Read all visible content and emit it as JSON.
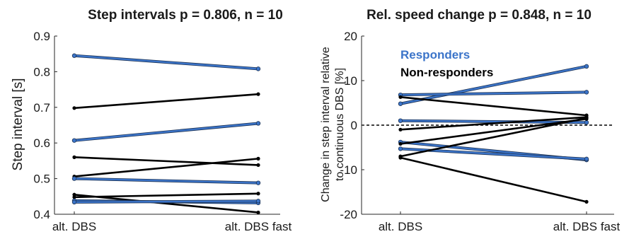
{
  "colors": {
    "responder": "#3b74c9",
    "non_responder": "#000000",
    "axis": "#262626"
  },
  "chart_data": [
    {
      "type": "line",
      "title": "Step intervals p = 0.806, n = 10",
      "ylabel": "Step interval [s]",
      "xlabel": "",
      "categories": [
        "alt. DBS",
        "alt. DBS fast"
      ],
      "ylim": [
        0.4,
        0.9
      ],
      "yticks": [
        "0.4",
        "0.5",
        "0.6",
        "0.7",
        "0.8",
        "0.9"
      ],
      "grid": false,
      "series": [
        {
          "group": "responder",
          "values": [
            0.845,
            0.808
          ]
        },
        {
          "group": "non-responder",
          "values": [
            0.698,
            0.737
          ]
        },
        {
          "group": "responder",
          "values": [
            0.607,
            0.655
          ]
        },
        {
          "group": "non-responder",
          "values": [
            0.56,
            0.538
          ]
        },
        {
          "group": "non-responder",
          "values": [
            0.506,
            0.556
          ]
        },
        {
          "group": "responder",
          "values": [
            0.5,
            0.488
          ]
        },
        {
          "group": "non-responder",
          "values": [
            0.455,
            0.405
          ]
        },
        {
          "group": "non-responder",
          "values": [
            0.448,
            0.458
          ]
        },
        {
          "group": "responder",
          "values": [
            0.438,
            0.432
          ]
        },
        {
          "group": "responder",
          "values": [
            0.434,
            0.437
          ]
        }
      ]
    },
    {
      "type": "line",
      "title": "Rel. speed change p = 0.848, n = 10",
      "ylabel": "Change in step interval relative to continuous DBS [%]",
      "ylabel_lines": [
        "Change in step interval relative",
        "to continuous DBS [%]"
      ],
      "xlabel": "",
      "categories": [
        "alt. DBS",
        "alt. DBS fast"
      ],
      "ylim": [
        -20,
        20
      ],
      "yticks": [
        "-20",
        "-10",
        "0",
        "10",
        "20"
      ],
      "grid": false,
      "reference_line": 0,
      "legend": {
        "position": "top-left",
        "entries": [
          "Responders",
          "Non-responders"
        ]
      },
      "series": [
        {
          "group": "responder",
          "values": [
            4.8,
            13.2
          ]
        },
        {
          "group": "responder",
          "values": [
            6.8,
            7.4
          ]
        },
        {
          "group": "responder",
          "values": [
            1.0,
            0.6
          ]
        },
        {
          "group": "responder",
          "values": [
            -3.8,
            -7.8
          ]
        },
        {
          "group": "responder",
          "values": [
            -5.3,
            -7.6
          ]
        },
        {
          "group": "non-responder",
          "values": [
            6.3,
            2.2
          ]
        },
        {
          "group": "non-responder",
          "values": [
            -1.0,
            1.8
          ]
        },
        {
          "group": "non-responder",
          "values": [
            -4.2,
            1.4
          ]
        },
        {
          "group": "non-responder",
          "values": [
            -7.0,
            1.6
          ]
        },
        {
          "group": "non-responder",
          "values": [
            -7.3,
            -17.2
          ]
        }
      ]
    }
  ]
}
